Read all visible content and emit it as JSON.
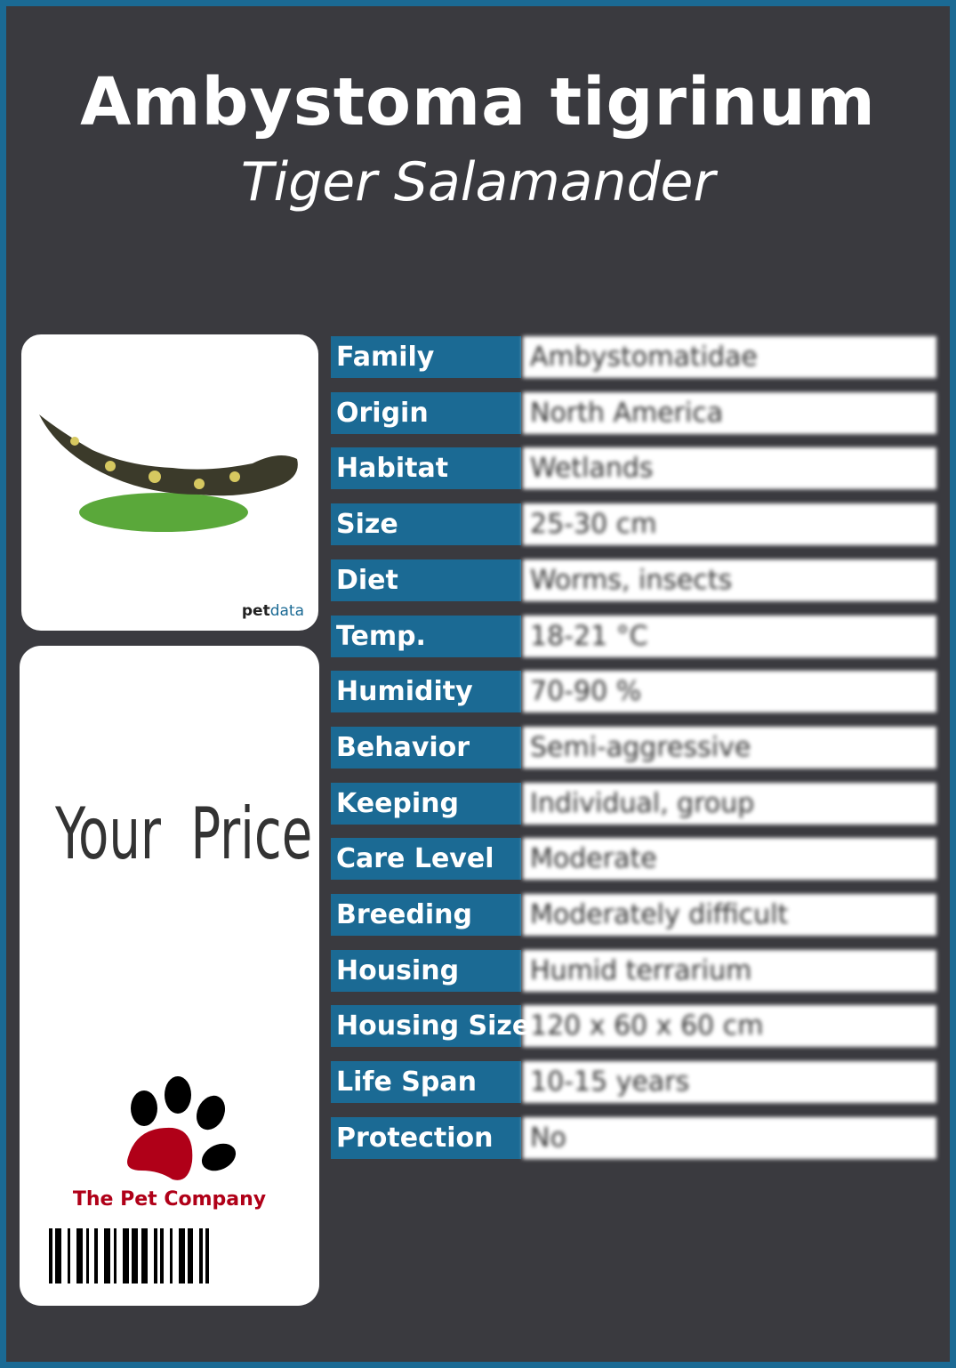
{
  "header": {
    "scientific_name": "Ambystoma tigrinum",
    "common_name": "Tiger Salamander"
  },
  "photo": {
    "brand_pet": "pet",
    "brand_data": "data"
  },
  "price": {
    "label": "Your Price"
  },
  "logo": {
    "company": "The Pet Company"
  },
  "colors": {
    "accent": "#1b6a94",
    "background": "#3a3a3f",
    "logo_red": "#b00018"
  },
  "attributes": [
    {
      "label": "Family",
      "value": "Ambystomatidae"
    },
    {
      "label": "Origin",
      "value": "North America"
    },
    {
      "label": "Habitat",
      "value": "Wetlands"
    },
    {
      "label": "Size",
      "value": "25-30 cm"
    },
    {
      "label": "Diet",
      "value": "Worms, insects"
    },
    {
      "label": "Temp.",
      "value": "18-21 °C"
    },
    {
      "label": "Humidity",
      "value": "70-90 %"
    },
    {
      "label": "Behavior",
      "value": "Semi-aggressive"
    },
    {
      "label": "Keeping",
      "value": "Individual, group"
    },
    {
      "label": "Care Level",
      "value": "Moderate"
    },
    {
      "label": "Breeding",
      "value": "Moderately difficult"
    },
    {
      "label": "Housing",
      "value": "Humid terrarium"
    },
    {
      "label": "Housing Size",
      "value": "120 x 60 x 60 cm"
    },
    {
      "label": "Life Span",
      "value": "10-15 years"
    },
    {
      "label": "Protection",
      "value": "No"
    }
  ]
}
